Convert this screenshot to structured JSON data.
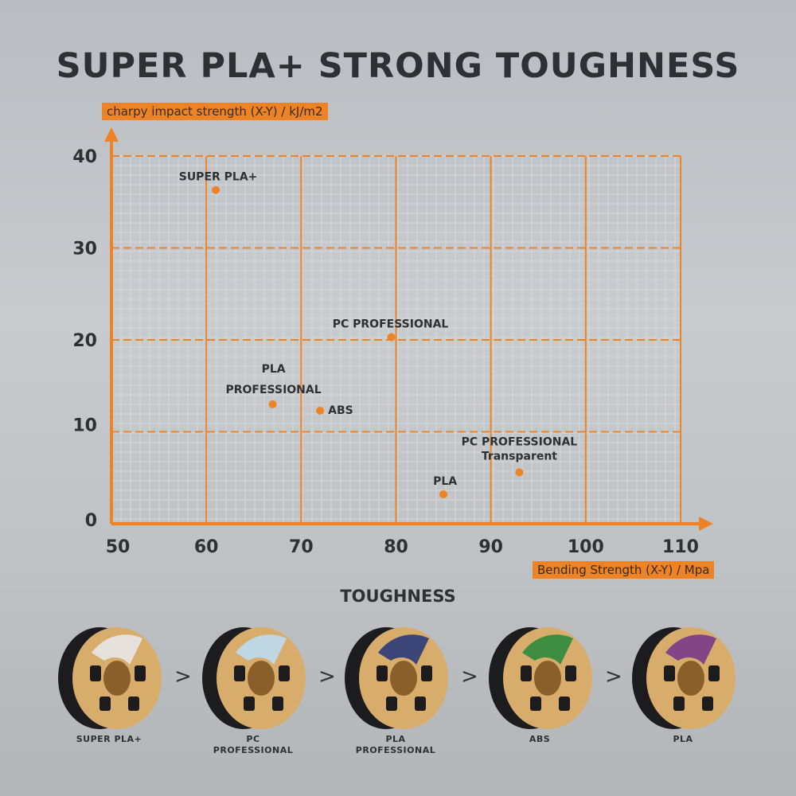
{
  "title": "SUPER PLA+ STRONG TOUGHNESS",
  "chart_data": {
    "type": "scatter",
    "ylabel": "charpy impact strength (X-Y) / kJ/m2",
    "xlabel": "Bending Strength (X-Y) / Mpa",
    "xlim": [
      50,
      110
    ],
    "ylim": [
      0,
      40
    ],
    "xticks": [
      "50",
      "60",
      "70",
      "80",
      "90",
      "100",
      "110"
    ],
    "yticks": [
      "0",
      "10",
      "20",
      "30",
      "40"
    ],
    "grid": true,
    "color": "#ee8326",
    "points": [
      {
        "label": "SUPER PLA+",
        "x": 61,
        "y": 36.3
      },
      {
        "label": "PC PROFESSIONAL",
        "x": 79.5,
        "y": 20.3
      },
      {
        "label": "PLA PROFESSIONAL",
        "x": 67,
        "y": 13
      },
      {
        "label": "ABS",
        "x": 72,
        "y": 12.3
      },
      {
        "label": "PC PROFESSIONAL Transparent",
        "x": 93,
        "y": 5.6
      },
      {
        "label": "PLA",
        "x": 85,
        "y": 3.2
      }
    ]
  },
  "toughness": {
    "heading": "TOUGHNESS",
    "separator": ">",
    "items": [
      {
        "label": "SUPER PLA+",
        "label_color": "#e8e8e8"
      },
      {
        "label": "PC\nPROFESSIONAL",
        "label_color": "#bcdcf0"
      },
      {
        "label": "PLA\nPROFESSIONAL",
        "label_color": "#2a3a7a"
      },
      {
        "label": "ABS",
        "label_color": "#2e8a3e"
      },
      {
        "label": "PLA",
        "label_color": "#7a3a8a"
      }
    ]
  }
}
